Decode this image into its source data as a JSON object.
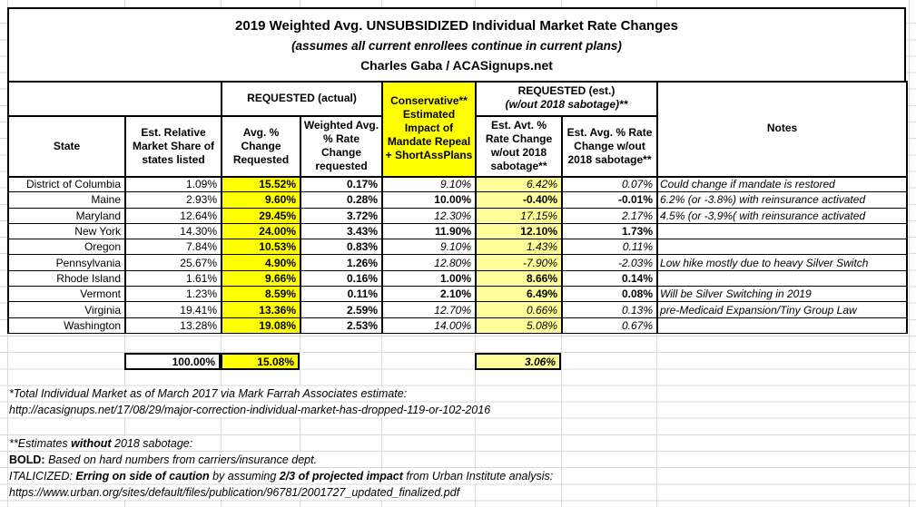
{
  "title": {
    "line1": "2019 Weighted Avg. UNSUBSIDIZED Individual Market Rate Changes",
    "line2": "(assumes all current enrollees continue in current plans)",
    "line3": "Charles Gaba / ACASignups.net"
  },
  "table": {
    "group_headers": {
      "requested_actual": "REQUESTED (actual)",
      "requested_est_line1": "REQUESTED (est.)",
      "requested_est_line2": "(w/out 2018 sabotage)**",
      "conservative": "Conservative** Estimated Impact of Mandate Repeal + ShortAssPlans",
      "notes": "Notes"
    },
    "columns": {
      "state": "State",
      "share": "Est. Relative Market Share of states listed",
      "avg_change": "Avg. % Change Requested",
      "weighted": "Weighted Avg. % Rate Change requested",
      "est_avt": "Est. Avt. % Rate Change w/out 2018 sabotage**",
      "est_avg": "Est. Avg. % Rate Change w/out 2018 sabotage**"
    },
    "rows": [
      {
        "state": "District of Columbia",
        "share": "1.09%",
        "avg_change": "15.52%",
        "weighted": "0.17%",
        "conservative": "9.10%",
        "est_avt": "6.42%",
        "est_avg": "0.07%",
        "note": "Could change if mandate is restored",
        "emphasis": "italic"
      },
      {
        "state": "Maine",
        "share": "2.93%",
        "avg_change": "9.60%",
        "weighted": "0.28%",
        "conservative": "10.00%",
        "est_avt": "-0.40%",
        "est_avg": "-0.01%",
        "note": "6.2% (or -3.8%) with reinsurance activated",
        "emphasis": "bold"
      },
      {
        "state": "Maryland",
        "share": "12.64%",
        "avg_change": "29.45%",
        "weighted": "3.72%",
        "conservative": "12.30%",
        "est_avt": "17.15%",
        "est_avg": "2.17%",
        "note": "4.5% (or -3,9%( with reinsurance activated",
        "emphasis": "italic"
      },
      {
        "state": "New York",
        "share": "14.30%",
        "avg_change": "24.00%",
        "weighted": "3.43%",
        "conservative": "11.90%",
        "est_avt": "12.10%",
        "est_avg": "1.73%",
        "note": "",
        "emphasis": "bold"
      },
      {
        "state": "Oregon",
        "share": "7.84%",
        "avg_change": "10.53%",
        "weighted": "0.83%",
        "conservative": "9.10%",
        "est_avt": "1.43%",
        "est_avg": "0.11%",
        "note": "",
        "emphasis": "italic"
      },
      {
        "state": "Pennsylvania",
        "share": "25.67%",
        "avg_change": "4.90%",
        "weighted": "1.26%",
        "conservative": "12.80%",
        "est_avt": "-7.90%",
        "est_avg": "-2.03%",
        "note": "Low hike mostly due to heavy Silver Switch",
        "emphasis": "italic"
      },
      {
        "state": "Rhode Island",
        "share": "1.61%",
        "avg_change": "9.66%",
        "weighted": "0.16%",
        "conservative": "1.00%",
        "est_avt": "8.66%",
        "est_avg": "0.14%",
        "note": "",
        "emphasis": "bold"
      },
      {
        "state": "Vermont",
        "share": "1.23%",
        "avg_change": "8.59%",
        "weighted": "0.11%",
        "conservative": "2.10%",
        "est_avt": "6.49%",
        "est_avg": "0.08%",
        "note": "Will be Silver Switching in 2019",
        "emphasis": "bold"
      },
      {
        "state": "Virginia",
        "share": "19.41%",
        "avg_change": "13.36%",
        "weighted": "2.59%",
        "conservative": "12.70%",
        "est_avt": "0.66%",
        "est_avg": "0.13%",
        "note": "pre-Medicaid Expansion/Tiny Group Law",
        "emphasis": "italic"
      },
      {
        "state": "Washington",
        "share": "13.28%",
        "avg_change": "19.08%",
        "weighted": "2.53%",
        "conservative": "14.00%",
        "est_avt": "5.08%",
        "est_avg": "0.67%",
        "note": "",
        "emphasis": "italic"
      }
    ],
    "totals": {
      "share": "100.00%",
      "avg_change": "15.08%",
      "est_avt": "3.06%"
    }
  },
  "footnotes": {
    "mfa_line": "*Total Individual Market as of March 2017 via Mark Farrah Associates estimate:",
    "mfa_url": "http://acasignups.net/17/08/29/major-correction-individual-market-has-dropped-119-or-102-2016",
    "estimates_segments": [
      {
        "t": "**Estimates ",
        "b": false,
        "i": true
      },
      {
        "t": "without",
        "b": true,
        "i": true
      },
      {
        "t": " 2018 sabotage:",
        "b": false,
        "i": true
      }
    ],
    "bold_segments": [
      {
        "t": "BOLD",
        "b": true,
        "i": false
      },
      {
        "t": ": ",
        "b": true,
        "i": false
      },
      {
        "t": "Based on hard numbers from carriers/insurance dept.",
        "b": false,
        "i": true
      }
    ],
    "italicized_segments": [
      {
        "t": "ITALICIZED: ",
        "b": false,
        "i": true
      },
      {
        "t": "Erring on side of caution",
        "b": true,
        "i": true
      },
      {
        "t": " by assuming ",
        "b": false,
        "i": true
      },
      {
        "t": "2/3 of projected impact",
        "b": true,
        "i": true
      },
      {
        "t": " from Urban Institute analysis:",
        "b": false,
        "i": true
      }
    ],
    "urban_url": "https://www.urban.org/sites/default/files/publication/96781/2001727_updated_finalized.pdf"
  },
  "colors": {
    "highlight_yellow": "#ffff00",
    "highlight_pale_yellow": "#ffff99",
    "table_border": "#000000",
    "gridline_gray": "#d9d9d9"
  }
}
